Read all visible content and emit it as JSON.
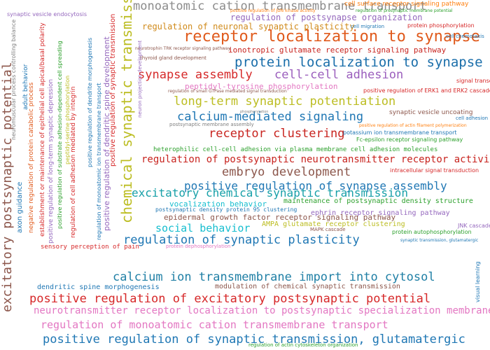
{
  "words": {
    "w01": "monoatomic cation transmembrane transport",
    "w02": "receptor localization to synapse",
    "w03": "protein localization to synapse",
    "w04": "synapse assembly",
    "w05": "cell-cell adhesion",
    "w06": "long-term synaptic potentiation",
    "w07": "calcium-mediated signaling",
    "w08": "receptor clustering",
    "w09": "regulation of postsynaptic neurotransmitter receptor activity",
    "w10": "embryo development",
    "w11": "positive regulation of synapse assembly",
    "w12": "excitatory chemical synaptic transmission",
    "w13": "social behavior",
    "w14": "regulation of synaptic plasticity",
    "w15": "calcium ion transmembrane import into cytosol",
    "w16": "positive regulation of excitatory postsynaptic potential",
    "w17": "neurotransmitter receptor localization to postsynaptic specialization membrane",
    "w18": "regulation of monoatomic cation transmembrane transport",
    "w19": "positive regulation of synaptic transmission, glutamatergic",
    "w20": "regulation of postsynapse organization",
    "w21": "regulation of neuronal synaptic plasticity",
    "w22": "ionotropic glutamate receptor signaling pathway",
    "w23": "peptidyl-tyrosine phosphorylation",
    "w24": "heterophilic cell-cell adhesion via plasma membrane cell adhesion molecules",
    "w25": "vocalization behavior",
    "w26": "maintenance of postsynaptic density structure",
    "w27": "ephrin receptor signaling pathway",
    "w28": "epidermal growth factor receptor signaling pathway",
    "w29": "postsynaptic density protein 95 clustering",
    "w30": "AMPA glutamate receptor clustering",
    "w31": "dendritic spine morphogenesis",
    "w32": "sensory perception of pain",
    "w33": "modulation of chemical synaptic transmission",
    "w34": "cell surface receptor signaling pathway",
    "w35": "protein phosphorylation",
    "w36": "cell migration",
    "w37": "cell chemotaxis",
    "w38": "positive regulation of ERK1 and ERK2 cascade",
    "w39": "signal transduction",
    "w40": "synaptic vesicle uncoating",
    "w41": "potassium ion transmembrane transport",
    "w42": "Fc-epsilon receptor signaling pathway",
    "w43": "intracellular signal transduction",
    "w44": "JNK cascade",
    "w45": "protein autophosphorylation",
    "w46": "MAPK cascade",
    "w47": "thyroid gland development",
    "w48": "synaptic vesicle endocytosis",
    "w49": "postsynaptic membrane assembly",
    "w50": "regulation of small GTPase mediated signal transduction",
    "w51": "positive regulation of actin filament polymerization",
    "w52": "cell adhesion",
    "w53": "protein dephosphorylation",
    "w54": "regulation of actin cytoskeleton organization",
    "w55": "visual learning",
    "w56": "synaptic transmission, glutamatergic",
    "w57": "positive regulation of JUN kinase activity",
    "w58": "regulation of presynaptic membrane potential",
    "w59": "neurotrophin TRK receptor signaling pathway",
    "w60": "phosphorylation",
    "w61": "excitatory postsynaptic potential",
    "w62": "chemical synaptic transmission",
    "w63": "positive regulation of dendritic spine development",
    "w64": "positive regulation of synaptic transmission",
    "w65": "axon guidance",
    "w66": "negative regulation of protein catabolic process",
    "w67": "establishment or maintenance of epithelial cell apical/basal polarity",
    "w68": "regulation of cell adhesion mediated by integrin",
    "w69": "positive regulation of long-term synaptic depression",
    "w70": "positive regulation of substrate adhesion-dependent cell spreading",
    "w71": "peptidyl-serine phosphorylation",
    "w72": "regulation of monoatomic ion transmembrane transport",
    "w73": "neuromuscular process controlling balance",
    "w74": "adult behavior",
    "w75": "positive regulation of dendrite morphogenesis",
    "w76": "neuron projection development"
  }
}
